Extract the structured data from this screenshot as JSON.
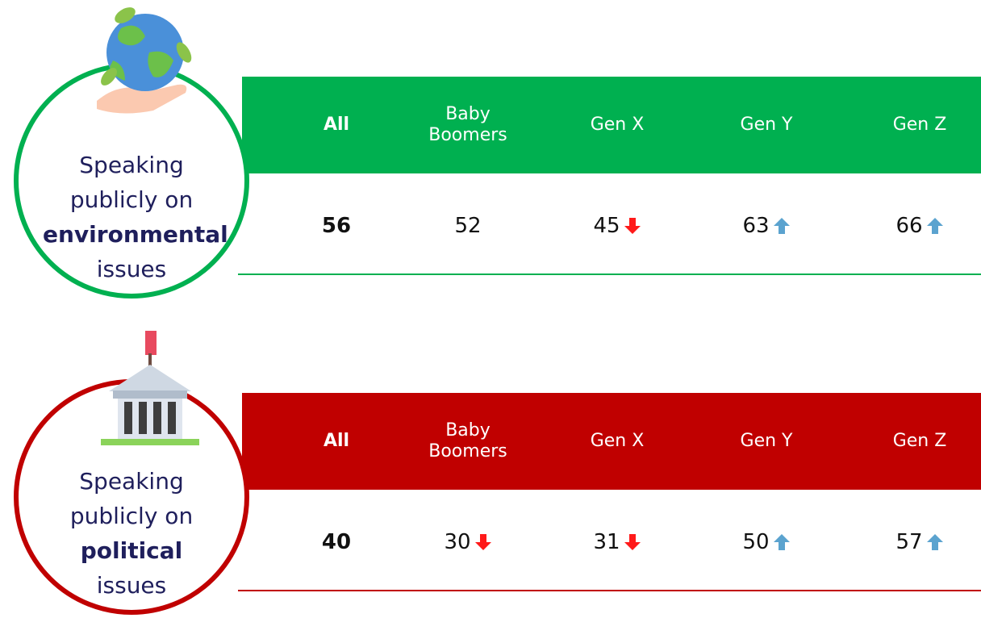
{
  "panels": [
    {
      "color": "#00b050",
      "label": {
        "before": "Speaking publicly on",
        "bold": "environmental",
        "after": "issues"
      },
      "columns": [
        "All",
        "Baby Boomers",
        "Gen X",
        "Gen Y",
        "Gen Z"
      ],
      "values": [
        56,
        52,
        45,
        63,
        66
      ],
      "trends": [
        null,
        null,
        "down",
        "up",
        "up"
      ]
    },
    {
      "color": "#c00000",
      "label": {
        "before": "Speaking publicly on",
        "bold": "political",
        "after": "issues"
      },
      "columns": [
        "All",
        "Baby Boomers",
        "Gen X",
        "Gen Y",
        "Gen Z"
      ],
      "values": [
        40,
        30,
        31,
        50,
        57
      ],
      "trends": [
        null,
        "down",
        "down",
        "up",
        "up"
      ]
    }
  ]
}
